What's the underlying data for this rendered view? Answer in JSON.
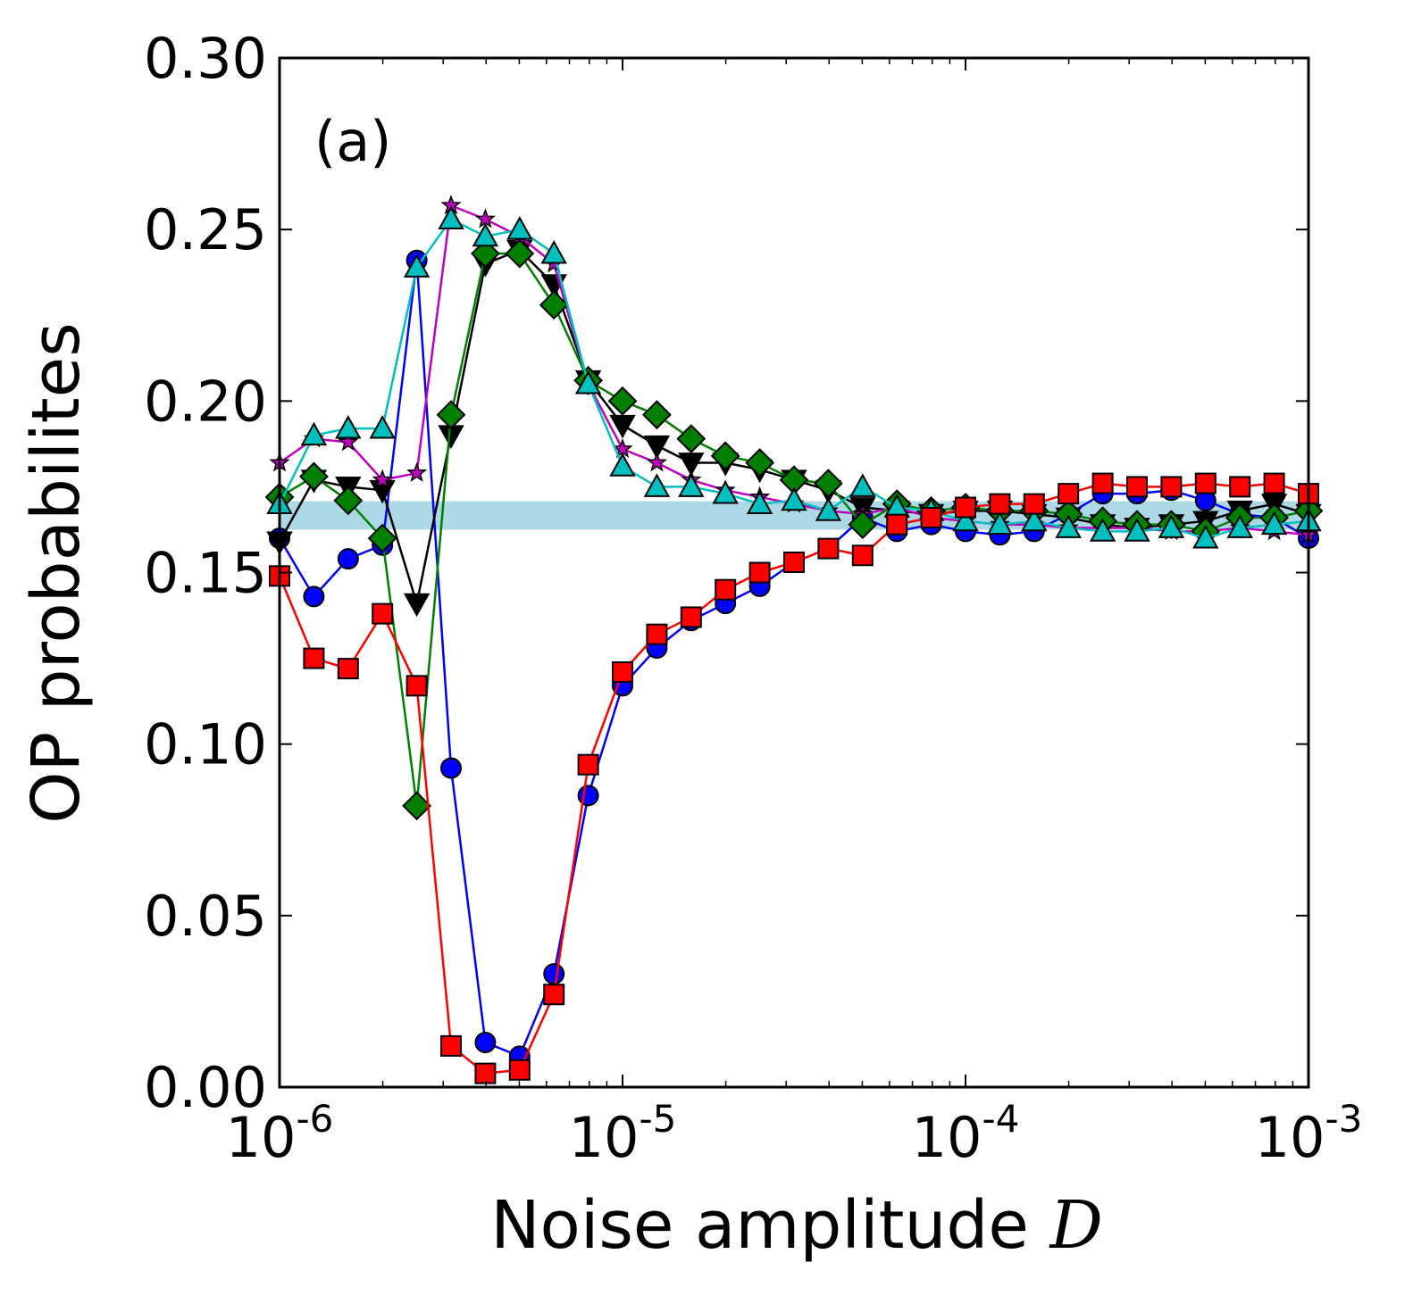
{
  "chart_data": {
    "type": "line",
    "panel_label": "(a)",
    "xlabel": "Noise amplitude ",
    "xlabel_symbol": "D",
    "ylabel": "OP probabilites",
    "xscale": "log",
    "xlim": [
      1e-06,
      0.001
    ],
    "ylim": [
      0.0,
      0.3
    ],
    "grid": false,
    "y_ticks": [
      {
        "value": 0.0,
        "label": "0.00"
      },
      {
        "value": 0.05,
        "label": "0.05"
      },
      {
        "value": 0.1,
        "label": "0.10"
      },
      {
        "value": 0.15,
        "label": "0.15"
      },
      {
        "value": 0.2,
        "label": "0.20"
      },
      {
        "value": 0.25,
        "label": "0.25"
      },
      {
        "value": 0.3,
        "label": "0.30"
      }
    ],
    "x_ticks": [
      {
        "value": 1e-06,
        "base": "10",
        "exp": "-6"
      },
      {
        "value": 1e-05,
        "base": "10",
        "exp": "-5"
      },
      {
        "value": 0.0001,
        "base": "10",
        "exp": "-4"
      },
      {
        "value": 0.001,
        "base": "10",
        "exp": "-3"
      }
    ],
    "reference_band": {
      "ymin": 0.1625,
      "ymax": 0.1708,
      "color": "#add8e6"
    },
    "x": [
      1e-06,
      1.259e-06,
      1.585e-06,
      1.995e-06,
      2.512e-06,
      3.162e-06,
      3.981e-06,
      5.012e-06,
      6.31e-06,
      7.943e-06,
      1e-05,
      1.259e-05,
      1.585e-05,
      1.995e-05,
      2.512e-05,
      3.162e-05,
      3.981e-05,
      5.012e-05,
      6.31e-05,
      7.943e-05,
      0.0001,
      0.0001259,
      0.0001585,
      0.0001995,
      0.0002512,
      0.0003162,
      0.0003981,
      0.0005012,
      0.000631,
      0.0007943,
      0.001
    ],
    "series": [
      {
        "name": "circle",
        "color": "#0000ff",
        "marker": "circle",
        "values": [
          0.16,
          0.143,
          0.154,
          0.158,
          0.241,
          0.093,
          0.013,
          0.009,
          0.033,
          0.085,
          0.117,
          0.128,
          0.136,
          0.141,
          0.146,
          0.153,
          0.157,
          0.166,
          0.162,
          0.164,
          0.162,
          0.161,
          0.162,
          0.167,
          0.173,
          0.173,
          0.174,
          0.171,
          0.167,
          0.166,
          0.16
        ]
      },
      {
        "name": "triangle-down",
        "color": "#000000",
        "marker": "triangle-down",
        "values": [
          0.159,
          0.177,
          0.175,
          0.174,
          0.141,
          0.19,
          0.24,
          0.244,
          0.234,
          0.206,
          0.193,
          0.187,
          0.182,
          0.182,
          0.18,
          0.177,
          0.174,
          0.169,
          0.168,
          0.167,
          0.168,
          0.168,
          0.167,
          0.166,
          0.164,
          0.163,
          0.164,
          0.165,
          0.168,
          0.17,
          0.167
        ]
      },
      {
        "name": "star",
        "color": "#bf00bf",
        "marker": "star",
        "values": [
          0.182,
          0.189,
          0.188,
          0.177,
          0.179,
          0.257,
          0.253,
          0.248,
          0.24,
          0.205,
          0.186,
          0.182,
          0.177,
          0.174,
          0.172,
          0.17,
          0.168,
          0.167,
          0.169,
          0.166,
          0.165,
          0.164,
          0.164,
          0.163,
          0.163,
          0.163,
          0.162,
          0.162,
          0.163,
          0.162,
          0.161
        ]
      },
      {
        "name": "diamond",
        "color": "#007f00",
        "marker": "diamond",
        "values": [
          0.172,
          0.178,
          0.171,
          0.16,
          0.082,
          0.196,
          0.243,
          0.243,
          0.228,
          0.206,
          0.2,
          0.196,
          0.189,
          0.184,
          0.182,
          0.177,
          0.176,
          0.164,
          0.17,
          0.168,
          0.169,
          0.168,
          0.168,
          0.167,
          0.165,
          0.164,
          0.164,
          0.162,
          0.166,
          0.166,
          0.168
        ]
      },
      {
        "name": "triangle-up",
        "color": "#00bfbf",
        "marker": "triangle-up",
        "values": [
          0.17,
          0.19,
          0.192,
          0.192,
          0.239,
          0.253,
          0.248,
          0.25,
          0.243,
          0.205,
          0.181,
          0.175,
          0.175,
          0.173,
          0.17,
          0.171,
          0.168,
          0.175,
          0.169,
          0.168,
          0.165,
          0.164,
          0.165,
          0.163,
          0.162,
          0.162,
          0.163,
          0.16,
          0.163,
          0.164,
          0.165
        ]
      },
      {
        "name": "square",
        "color": "#ff0000",
        "marker": "square",
        "values": [
          0.149,
          0.125,
          0.122,
          0.138,
          0.117,
          0.012,
          0.004,
          0.005,
          0.027,
          0.094,
          0.121,
          0.132,
          0.137,
          0.145,
          0.15,
          0.153,
          0.157,
          0.155,
          0.164,
          0.166,
          0.169,
          0.17,
          0.17,
          0.173,
          0.176,
          0.175,
          0.175,
          0.176,
          0.175,
          0.176,
          0.173
        ]
      }
    ]
  }
}
